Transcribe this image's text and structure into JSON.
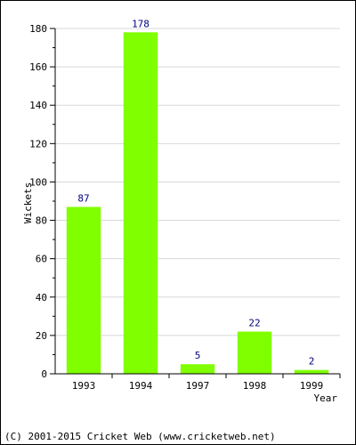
{
  "chart_data": {
    "type": "bar",
    "categories": [
      "1993",
      "1994",
      "1997",
      "1998",
      "1999"
    ],
    "values": [
      87,
      178,
      5,
      22,
      2
    ],
    "data_labels": [
      "87",
      "178",
      "5",
      "22",
      "2"
    ],
    "title": "",
    "xlabel": "Year",
    "ylabel": "Wickets",
    "ylim": [
      0,
      180
    ],
    "yticks": [
      0,
      20,
      40,
      60,
      80,
      100,
      120,
      140,
      160,
      180
    ],
    "grid": true,
    "colors": {
      "bar": "#80ff00",
      "data_label": "#000080",
      "grid": "#d8d8d8",
      "axis": "#000000"
    }
  },
  "footer": {
    "copyright": "(C) 2001-2015 Cricket Web (www.cricketweb.net)"
  }
}
